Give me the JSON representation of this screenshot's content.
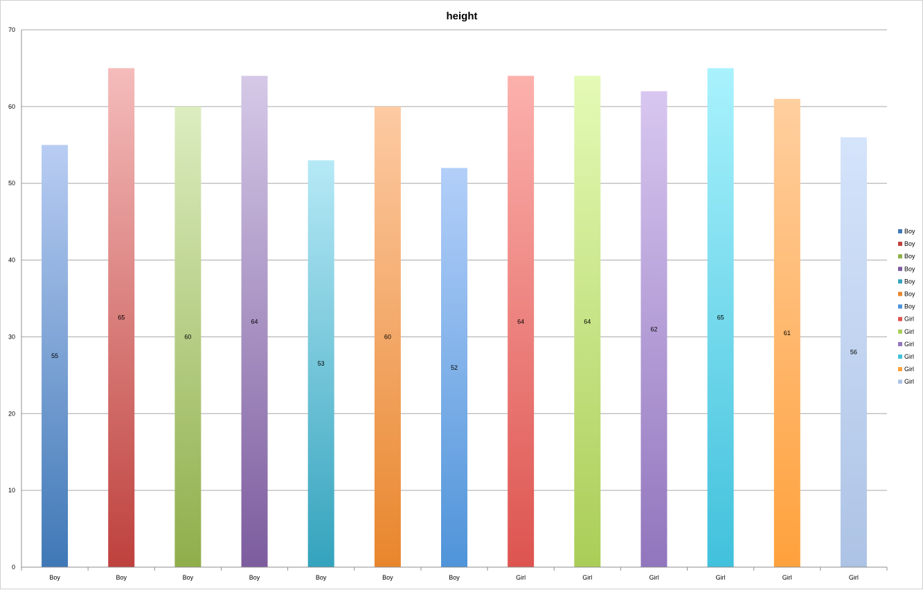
{
  "chart_data": {
    "type": "bar",
    "title": "height",
    "xlabel": "",
    "ylabel": "",
    "ylim": [
      0,
      70
    ],
    "yticks": [
      "0",
      "10",
      "20",
      "30",
      "40",
      "50",
      "60",
      "70"
    ],
    "grid": true,
    "legend_position": "right",
    "categories": [
      "Boy",
      "Boy",
      "Boy",
      "Boy",
      "Boy",
      "Boy",
      "Boy",
      "Girl",
      "Girl",
      "Girl",
      "Girl",
      "Girl",
      "Girl"
    ],
    "values": [
      55,
      65,
      60,
      64,
      53,
      60,
      52,
      64,
      64,
      62,
      65,
      61,
      56
    ],
    "data_labels": [
      "55",
      "65",
      "60",
      "64",
      "53",
      "60",
      "52",
      "64",
      "64",
      "62",
      "65",
      "61",
      "56"
    ],
    "series": [
      {
        "name": "Boy",
        "value": 55,
        "color_top": "#b9cdf3",
        "color_bottom": "#3f78b6"
      },
      {
        "name": "Boy",
        "value": 65,
        "color_top": "#f4bcbb",
        "color_bottom": "#be413d"
      },
      {
        "name": "Boy",
        "value": 60,
        "color_top": "#dcedc0",
        "color_bottom": "#8fae4a"
      },
      {
        "name": "Boy",
        "value": 64,
        "color_top": "#d5c9e7",
        "color_bottom": "#7c5c9e"
      },
      {
        "name": "Boy",
        "value": 53,
        "color_top": "#b6e9f6",
        "color_bottom": "#34a3bd"
      },
      {
        "name": "Boy",
        "value": 60,
        "color_top": "#fdcaa3",
        "color_bottom": "#e8862c"
      },
      {
        "name": "Boy",
        "value": 52,
        "color_top": "#b3cff9",
        "color_bottom": "#4f94d9"
      },
      {
        "name": "Girl",
        "value": 64,
        "color_top": "#fcb1ad",
        "color_bottom": "#dd5450"
      },
      {
        "name": "Girl",
        "value": 64,
        "color_top": "#e4fab6",
        "color_bottom": "#aacd57"
      },
      {
        "name": "Girl",
        "value": 62,
        "color_top": "#d8c7f0",
        "color_bottom": "#9175bd"
      },
      {
        "name": "Girl",
        "value": 65,
        "color_top": "#a9f2fd",
        "color_bottom": "#41c1dc"
      },
      {
        "name": "Girl",
        "value": 61,
        "color_top": "#ffcf9f",
        "color_bottom": "#ffa13c"
      },
      {
        "name": "Girl",
        "value": 56,
        "color_top": "#d5e4fb",
        "color_bottom": "#adc3e5"
      }
    ]
  }
}
